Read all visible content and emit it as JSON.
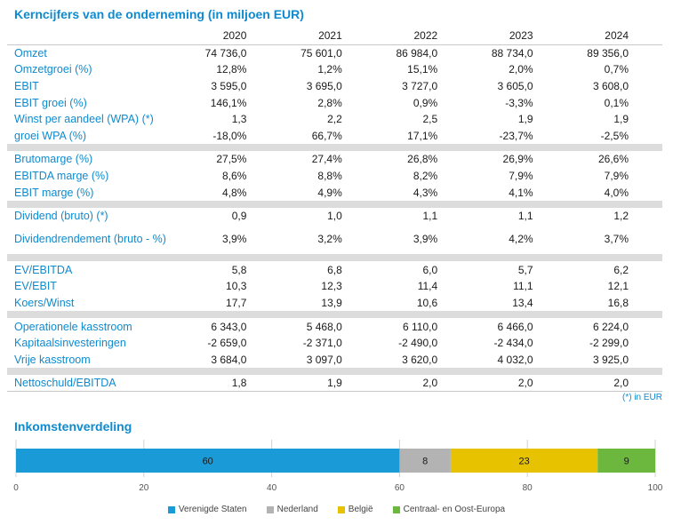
{
  "title": "Kerncijfers van de onderneming (in miljoen EUR)",
  "years": [
    "2020",
    "2021",
    "2022",
    "2023",
    "2024"
  ],
  "groups": [
    [
      {
        "label": "Omzet",
        "values": [
          "74 736,0",
          "75 601,0",
          "86 984,0",
          "88 734,0",
          "89 356,0"
        ]
      },
      {
        "label": "Omzetgroei (%)",
        "values": [
          "12,8%",
          "1,2%",
          "15,1%",
          "2,0%",
          "0,7%"
        ]
      },
      {
        "label": "EBIT",
        "values": [
          "3 595,0",
          "3 695,0",
          "3 727,0",
          "3 605,0",
          "3 608,0"
        ]
      },
      {
        "label": "EBIT groei (%)",
        "values": [
          "146,1%",
          "2,8%",
          "0,9%",
          "-3,3%",
          "0,1%"
        ]
      },
      {
        "label": "Winst per aandeel (WPA) (*)",
        "values": [
          "1,3",
          "2,2",
          "2,5",
          "1,9",
          "1,9"
        ]
      },
      {
        "label": "groei WPA (%)",
        "values": [
          "-18,0%",
          "66,7%",
          "17,1%",
          "-23,7%",
          "-2,5%"
        ]
      }
    ],
    [
      {
        "label": "Brutomarge (%)",
        "values": [
          "27,5%",
          "27,4%",
          "26,8%",
          "26,9%",
          "26,6%"
        ]
      },
      {
        "label": "EBITDA marge (%)",
        "values": [
          "8,6%",
          "8,8%",
          "8,2%",
          "7,9%",
          "7,9%"
        ]
      },
      {
        "label": "EBIT marge (%)",
        "values": [
          "4,8%",
          "4,9%",
          "4,3%",
          "4,1%",
          "4,0%"
        ]
      }
    ],
    [
      {
        "label": "Dividend (bruto) (*)",
        "values": [
          "0,9",
          "1,0",
          "1,1",
          "1,1",
          "1,2"
        ]
      },
      {
        "label": "Dividendrendement (bruto - %)",
        "values": [
          "3,9%",
          "3,2%",
          "3,9%",
          "4,2%",
          "3,7%"
        ],
        "tall": true
      }
    ],
    [
      {
        "label": "EV/EBITDA",
        "values": [
          "5,8",
          "6,8",
          "6,0",
          "5,7",
          "6,2"
        ]
      },
      {
        "label": "EV/EBIT",
        "values": [
          "10,3",
          "12,3",
          "11,4",
          "11,1",
          "12,1"
        ]
      },
      {
        "label": "Koers/Winst",
        "values": [
          "17,7",
          "13,9",
          "10,6",
          "13,4",
          "16,8"
        ]
      }
    ],
    [
      {
        "label": "Operationele kasstroom",
        "values": [
          "6 343,0",
          "5 468,0",
          "6 110,0",
          "6 466,0",
          "6 224,0"
        ]
      },
      {
        "label": "Kapitaalsinvesteringen",
        "values": [
          "-2 659,0",
          "-2 371,0",
          "-2 490,0",
          "-2 434,0",
          "-2 299,0"
        ]
      },
      {
        "label": "Vrije kasstroom",
        "values": [
          "3 684,0",
          "3 097,0",
          "3 620,0",
          "4 032,0",
          "3 925,0"
        ]
      }
    ],
    [
      {
        "label": "Nettoschuld/EBITDA",
        "values": [
          "1,8",
          "1,9",
          "2,0",
          "2,0",
          "2,0"
        ]
      }
    ]
  ],
  "footnote": "(*) in EUR",
  "income_title": "Inkomstenverdeling",
  "chart_data": {
    "type": "bar",
    "orientation": "horizontal-stacked",
    "series": [
      {
        "name": "Verenigde Staten",
        "value": 60,
        "color": "#1a9bd7"
      },
      {
        "name": "Nederland",
        "value": 8,
        "color": "#b3b3b3"
      },
      {
        "name": "België",
        "value": 23,
        "color": "#e6c200"
      },
      {
        "name": "Centraal- en Oost-Europa",
        "value": 9,
        "color": "#6cb73d"
      }
    ],
    "xlim": [
      0,
      100
    ],
    "xticks": [
      "0",
      "20",
      "40",
      "60",
      "80",
      "100"
    ],
    "legend_position": "bottom"
  }
}
